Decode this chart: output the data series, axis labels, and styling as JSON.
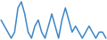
{
  "values": [
    5,
    4,
    3,
    2,
    3,
    7,
    8,
    6,
    3,
    2,
    4,
    5,
    3,
    2,
    4,
    6,
    4,
    2,
    5,
    7,
    5,
    3,
    4,
    3,
    2,
    3,
    4,
    3,
    2,
    3,
    3,
    2
  ],
  "line_color": "#3a87c8",
  "background_color": "#ffffff",
  "linewidth": 1.1
}
